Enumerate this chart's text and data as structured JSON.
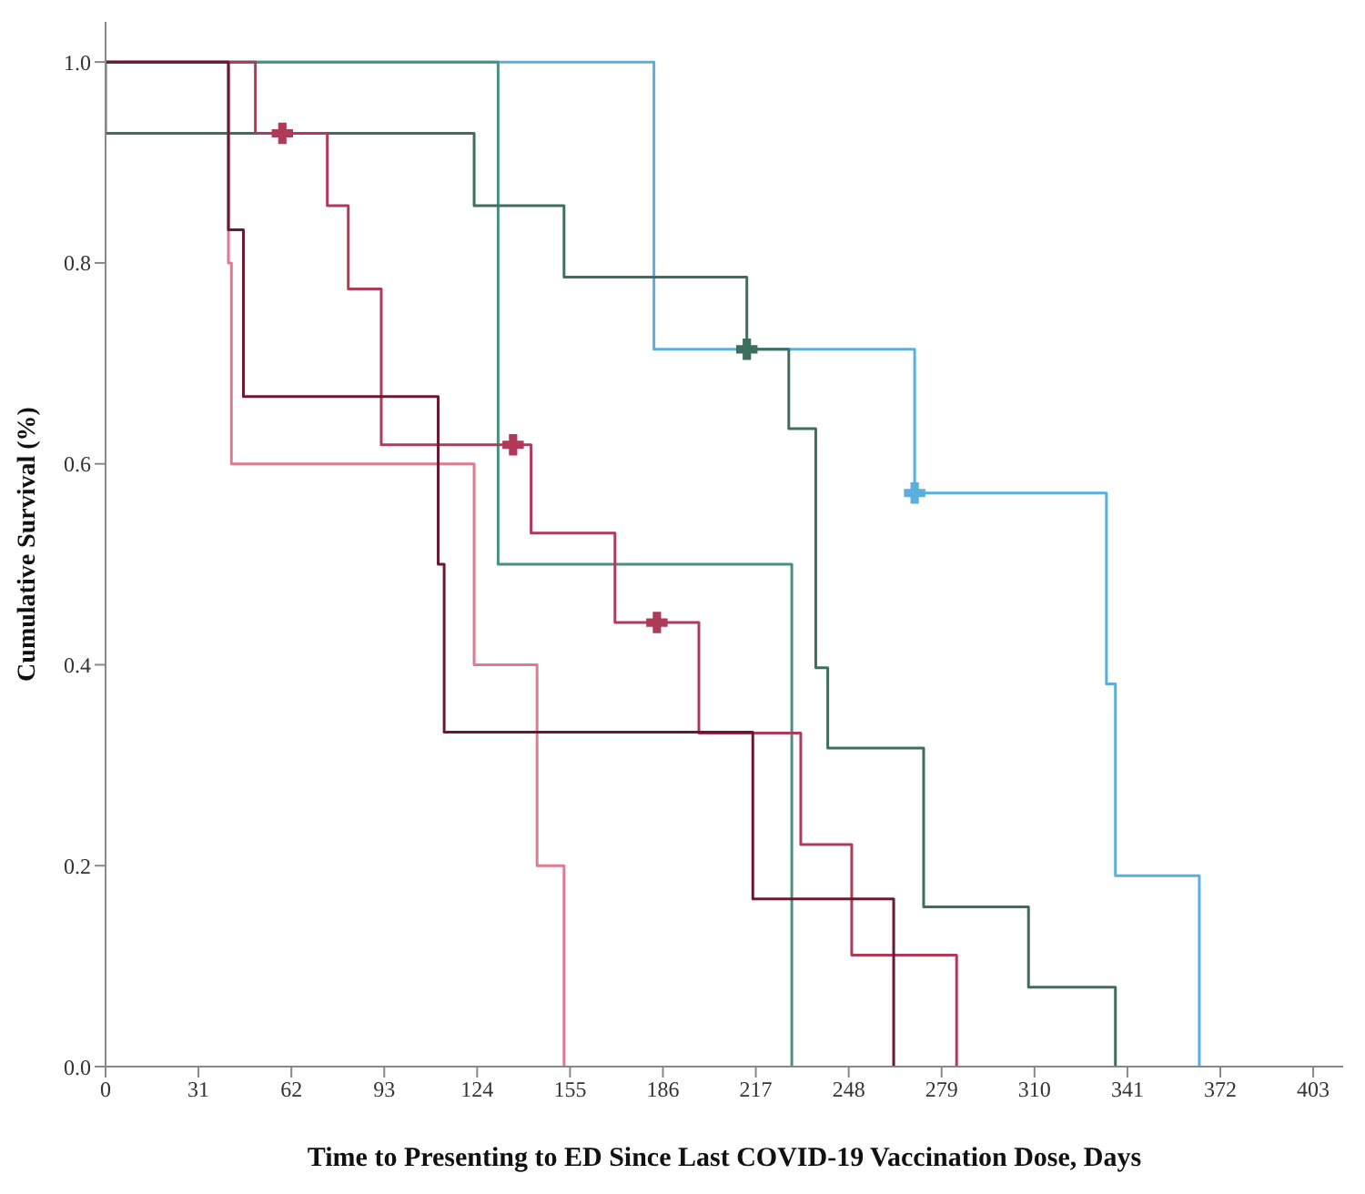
{
  "chart_data": {
    "type": "step",
    "xlabel": "Time to Presenting to ED Since Last COVID-19 Vaccination Dose, Days",
    "ylabel": "Cumulative Survival (%)",
    "xlim": [
      0,
      413
    ],
    "xticks": [
      0,
      31,
      62,
      93,
      124,
      155,
      186,
      217,
      248,
      279,
      310,
      341,
      372,
      403
    ],
    "ylim": [
      0,
      1.04
    ],
    "yticks": [
      {
        "value": 0,
        "label": "0.0"
      },
      {
        "value": 0.2,
        "label": "0.2"
      },
      {
        "value": 0.4,
        "label": "0.4"
      },
      {
        "value": 0.6,
        "label": "0.6"
      },
      {
        "value": 0.8,
        "label": "0.8"
      },
      {
        "value": 1,
        "label": "1.0"
      }
    ],
    "grid": false,
    "legend": false,
    "marker": "none",
    "line_style": "solid",
    "series": [
      {
        "color": "#5aaee0",
        "x": [
          0,
          183,
          270,
          334,
          337,
          365
        ],
        "values": [
          1,
          0.714,
          0.571,
          0.381,
          0.19,
          0
        ]
      },
      {
        "color": "#4a9080",
        "x": [
          0,
          131,
          229
        ],
        "values": [
          1,
          0.5,
          0
        ]
      },
      {
        "color": "#3e6e5e",
        "x": [
          0,
          0,
          123,
          153,
          214,
          228,
          237,
          241,
          273,
          308,
          337
        ],
        "values": [
          1,
          0.929,
          0.857,
          0.786,
          0.714,
          0.635,
          0.397,
          0.317,
          0.159,
          0.079,
          0
        ]
      },
      {
        "color": "#e07a92",
        "x": [
          0,
          41,
          42,
          123,
          144,
          153
        ],
        "values": [
          1,
          0.8,
          0.6,
          0.4,
          0.2,
          0
        ]
      },
      {
        "color": "#b03a5a",
        "x": [
          0,
          50,
          74,
          81,
          92,
          142,
          170,
          198,
          232,
          249,
          284
        ],
        "values": [
          1,
          0.929,
          0.857,
          0.774,
          0.619,
          0.531,
          0.442,
          0.332,
          0.221,
          0.111,
          0
        ]
      },
      {
        "color": "#6a1a30",
        "x": [
          0,
          41,
          46,
          111,
          113,
          216,
          263
        ],
        "values": [
          1,
          0.833,
          0.667,
          0.5,
          0.333,
          0.167,
          0
        ]
      },
      {
        "type": "scatter",
        "marker": "cross",
        "color": "#5aaee0",
        "x": [
          270
        ],
        "values": [
          0.571
        ]
      },
      {
        "type": "scatter",
        "marker": "cross",
        "color": "#3e6e5e",
        "x": [
          214
        ],
        "values": [
          0.714
        ]
      },
      {
        "type": "scatter",
        "marker": "cross",
        "color": "#b03a5a",
        "x": [
          59,
          136,
          184
        ],
        "values": [
          0.929,
          0.619,
          0.442
        ]
      }
    ]
  }
}
